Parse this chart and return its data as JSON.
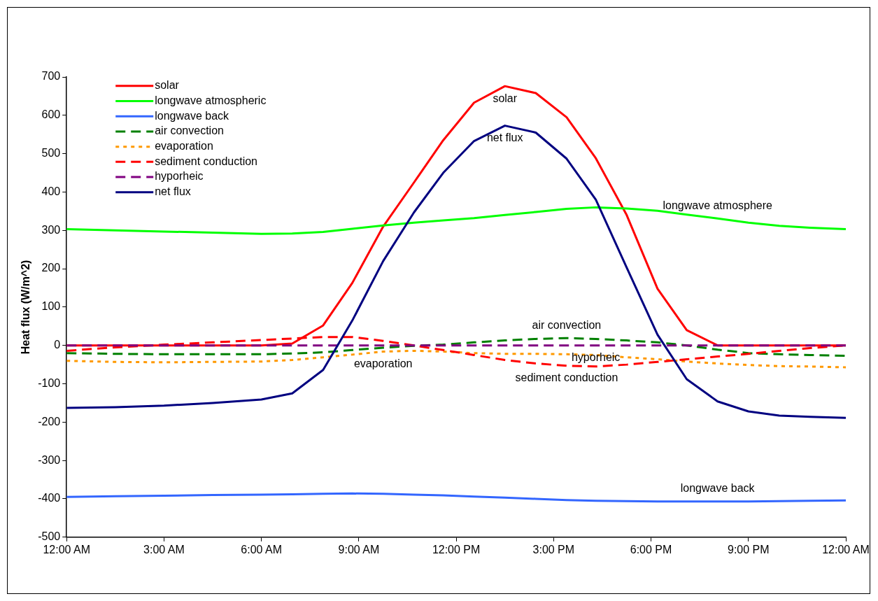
{
  "chart_data": {
    "type": "line",
    "ylabel": "Heat flux (W/m^2)",
    "x": [
      0,
      1.5,
      3,
      4.5,
      6,
      6.95,
      7.9,
      8.8,
      9.75,
      10.7,
      11.6,
      12.55,
      13.5,
      14.45,
      15.4,
      16.3,
      17.25,
      18.2,
      19.1,
      20.05,
      21,
      21.95,
      22.9,
      24
    ],
    "xlim": [
      0,
      24
    ],
    "xticks": [
      {
        "value": 0,
        "label": "12:00 AM"
      },
      {
        "value": 3,
        "label": "3:00 AM"
      },
      {
        "value": 6,
        "label": "6:00 AM"
      },
      {
        "value": 9,
        "label": "9:00 AM"
      },
      {
        "value": 12,
        "label": "12:00 PM"
      },
      {
        "value": 15,
        "label": "3:00 PM"
      },
      {
        "value": 18,
        "label": "6:00 PM"
      },
      {
        "value": 21,
        "label": "9:00 PM"
      },
      {
        "value": 24,
        "label": "12:00 AM"
      }
    ],
    "ylim": [
      -500,
      700
    ],
    "yticks": [
      -500,
      -400,
      -300,
      -200,
      -100,
      0,
      100,
      200,
      300,
      400,
      500,
      600,
      700
    ],
    "grid": false,
    "legend": "top left",
    "marker": "none",
    "series": [
      {
        "name": "solar",
        "color": "#ff0000",
        "line_style": "solid",
        "values": [
          0,
          0,
          0,
          0,
          0,
          5,
          52,
          163,
          310,
          425,
          535,
          633,
          676,
          658,
          595,
          488,
          340,
          148,
          40,
          0,
          0,
          0,
          0,
          0
        ]
      },
      {
        "name": "longwave atmospheric",
        "color": "#00ff00",
        "line_style": "solid",
        "values": [
          303,
          300,
          297,
          294,
          291,
          292,
          296,
          304,
          313,
          320,
          326,
          332,
          340,
          348,
          356,
          360,
          357,
          351,
          341,
          331,
          320,
          312,
          307,
          303
        ]
      },
      {
        "name": "longwave back",
        "color": "#3366ff",
        "line_style": "solid",
        "values": [
          -395,
          -393,
          -392,
          -390,
          -389,
          -388,
          -387,
          -386,
          -387,
          -389,
          -391,
          -394,
          -397,
          -400,
          -403,
          -405,
          -406,
          -407,
          -407,
          -407,
          -407,
          -406,
          -405,
          -404
        ]
      },
      {
        "name": "air convection",
        "color": "#008000",
        "line_style": "dashed",
        "values": [
          -20,
          -22,
          -23,
          -23,
          -23,
          -21,
          -18,
          -12,
          -6,
          -1,
          2,
          8,
          13,
          17,
          19,
          17,
          13,
          8,
          0,
          -11,
          -20,
          -23,
          -25,
          -27
        ]
      },
      {
        "name": "evaporation",
        "color": "#ff9900",
        "line_style": "dotted",
        "values": [
          -40,
          -43,
          -44,
          -43,
          -42,
          -38,
          -31,
          -24,
          -16,
          -14,
          -16,
          -20,
          -22,
          -22,
          -23,
          -25,
          -31,
          -36,
          -42,
          -47,
          -51,
          -54,
          -55,
          -57
        ]
      },
      {
        "name": "sediment conduction",
        "color": "#ff0000",
        "line_style": "dashed",
        "values": [
          -14,
          -5,
          2,
          8,
          14,
          18,
          22,
          22,
          12,
          0,
          -12,
          -25,
          -38,
          -47,
          -53,
          -55,
          -50,
          -43,
          -36,
          -29,
          -22,
          -14,
          -7,
          0
        ]
      },
      {
        "name": "hyporheic",
        "color": "#800080",
        "line_style": "dashed",
        "values": [
          0,
          0,
          0,
          0,
          0,
          0,
          0,
          0,
          0,
          0,
          0,
          0,
          0,
          0,
          0,
          0,
          0,
          0,
          0,
          0,
          0,
          0,
          0,
          0
        ]
      },
      {
        "name": "net flux",
        "color": "#000080",
        "line_style": "solid",
        "values": [
          -163,
          -161,
          -157,
          -150,
          -141,
          -125,
          -64,
          65,
          220,
          347,
          450,
          533,
          573,
          555,
          487,
          380,
          203,
          28,
          -88,
          -146,
          -172,
          -183,
          -186,
          -189
        ]
      }
    ],
    "annotations": [
      {
        "text": "solar",
        "x": 13.5,
        "y": 676
      },
      {
        "text": "net flux",
        "x": 13.5,
        "y": 573
      },
      {
        "text": "longwave atmosphere",
        "x": 20.05,
        "y": 331
      },
      {
        "text": "air convection",
        "x": 15.4,
        "y": 19
      },
      {
        "text": "hyporheic",
        "x": 16.3,
        "y": 0
      },
      {
        "text": "evaporation",
        "x": 9.75,
        "y": -16
      },
      {
        "text": "sediment conduction",
        "x": 15.4,
        "y": -53
      },
      {
        "text": "longwave back",
        "x": 20.05,
        "y": -407
      }
    ]
  }
}
